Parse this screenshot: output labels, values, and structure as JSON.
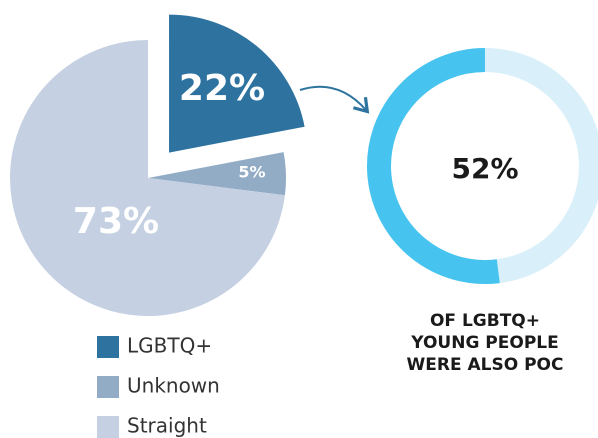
{
  "chart_data": [
    {
      "type": "pie",
      "categories": [
        "LGBTQ+",
        "Unknown",
        "Straight"
      ],
      "values": [
        22,
        5,
        73
      ],
      "value_labels": [
        "22%",
        "5%",
        "73%"
      ],
      "colors": [
        "#2e73a0",
        "#93acc6",
        "#c5d1e2"
      ],
      "explode": [
        true,
        false,
        false
      ]
    },
    {
      "type": "donut",
      "values": [
        52
      ],
      "value_labels": [
        "52%"
      ],
      "ylim": [
        0,
        100
      ],
      "color": "#46c4ef",
      "track_color": "#d9eff9",
      "caption": "OF LGBTQ+ YOUNG PEOPLE WERE ALSO POC"
    }
  ]
}
